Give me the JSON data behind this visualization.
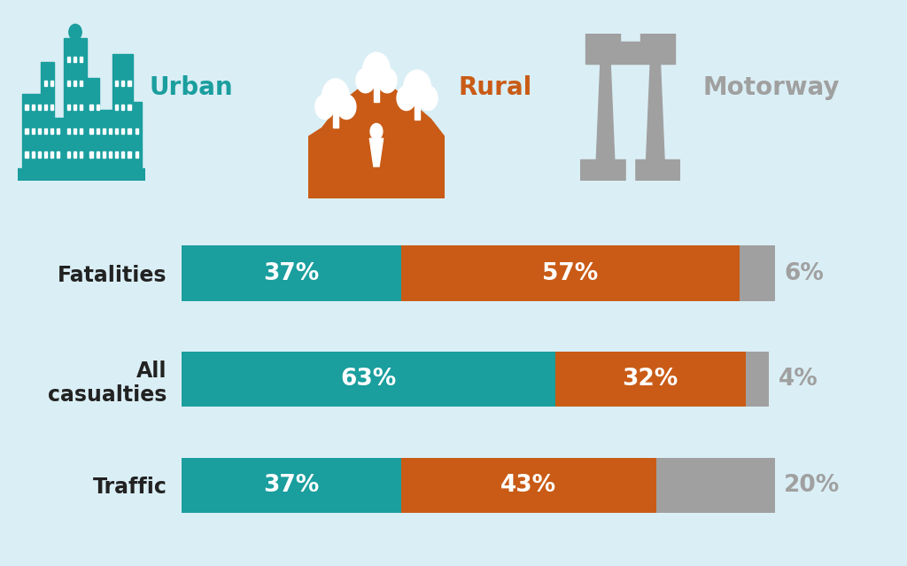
{
  "background_color": "#daeef5",
  "bar_height": 0.52,
  "categories": [
    "Fatalities",
    "All\ncasualties",
    "Traffic"
  ],
  "urban_values": [
    37,
    63,
    37
  ],
  "rural_values": [
    57,
    32,
    43
  ],
  "motorway_values": [
    6,
    4,
    20
  ],
  "urban_color": "#1a9e9e",
  "rural_color": "#c95b16",
  "motorway_color": "#a0a0a0",
  "urban_label": "Urban",
  "rural_label": "Rural",
  "motorway_label": "Motorway",
  "white": "#ffffff",
  "motorway_text_color": "#888888",
  "dark_text": "#222222",
  "label_fontsize": 17,
  "pct_fontsize": 19,
  "legend_fontsize": 20,
  "ylim": [
    -0.6,
    2.7
  ],
  "xlim": [
    0,
    100
  ]
}
